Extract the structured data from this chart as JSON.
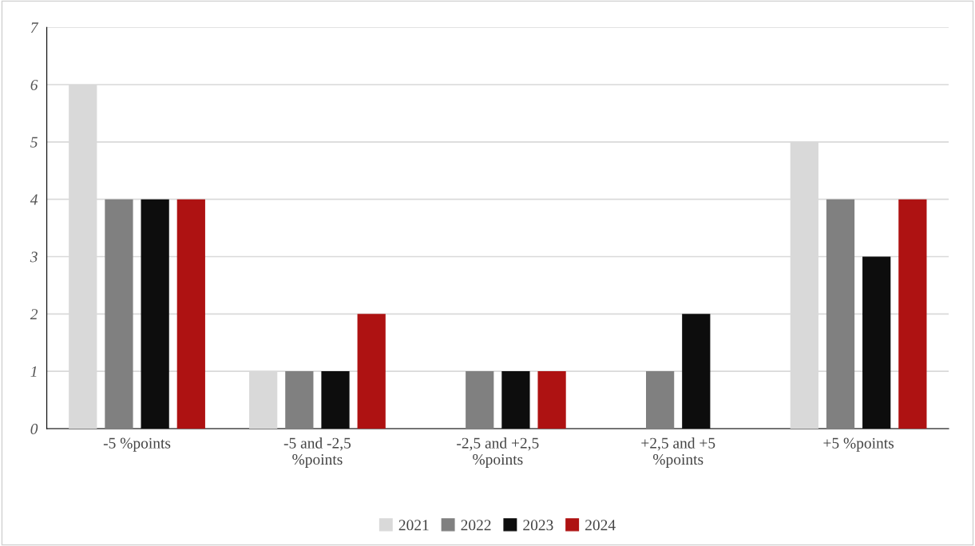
{
  "chart_data": {
    "type": "bar",
    "categories": [
      "-5 %points",
      "-5 and -2,5 %points",
      "-2,5 and +2,5 %points",
      "+2,5 and +5 %points",
      "+5 %points"
    ],
    "series": [
      {
        "name": "2021",
        "color": "#d9d9d9",
        "values": [
          6,
          1,
          0,
          0,
          5
        ]
      },
      {
        "name": "2022",
        "color": "#808080",
        "values": [
          4,
          1,
          1,
          1,
          4
        ]
      },
      {
        "name": "2023",
        "color": "#0d0d0d",
        "values": [
          4,
          1,
          1,
          2,
          3
        ]
      },
      {
        "name": "2024",
        "color": "#ae1212",
        "values": [
          4,
          2,
          1,
          0,
          4
        ]
      }
    ],
    "ylim": [
      0,
      7
    ],
    "yticks": [
      0,
      1,
      2,
      3,
      4,
      5,
      6,
      7
    ],
    "grid": "y",
    "legend": "bottom"
  }
}
